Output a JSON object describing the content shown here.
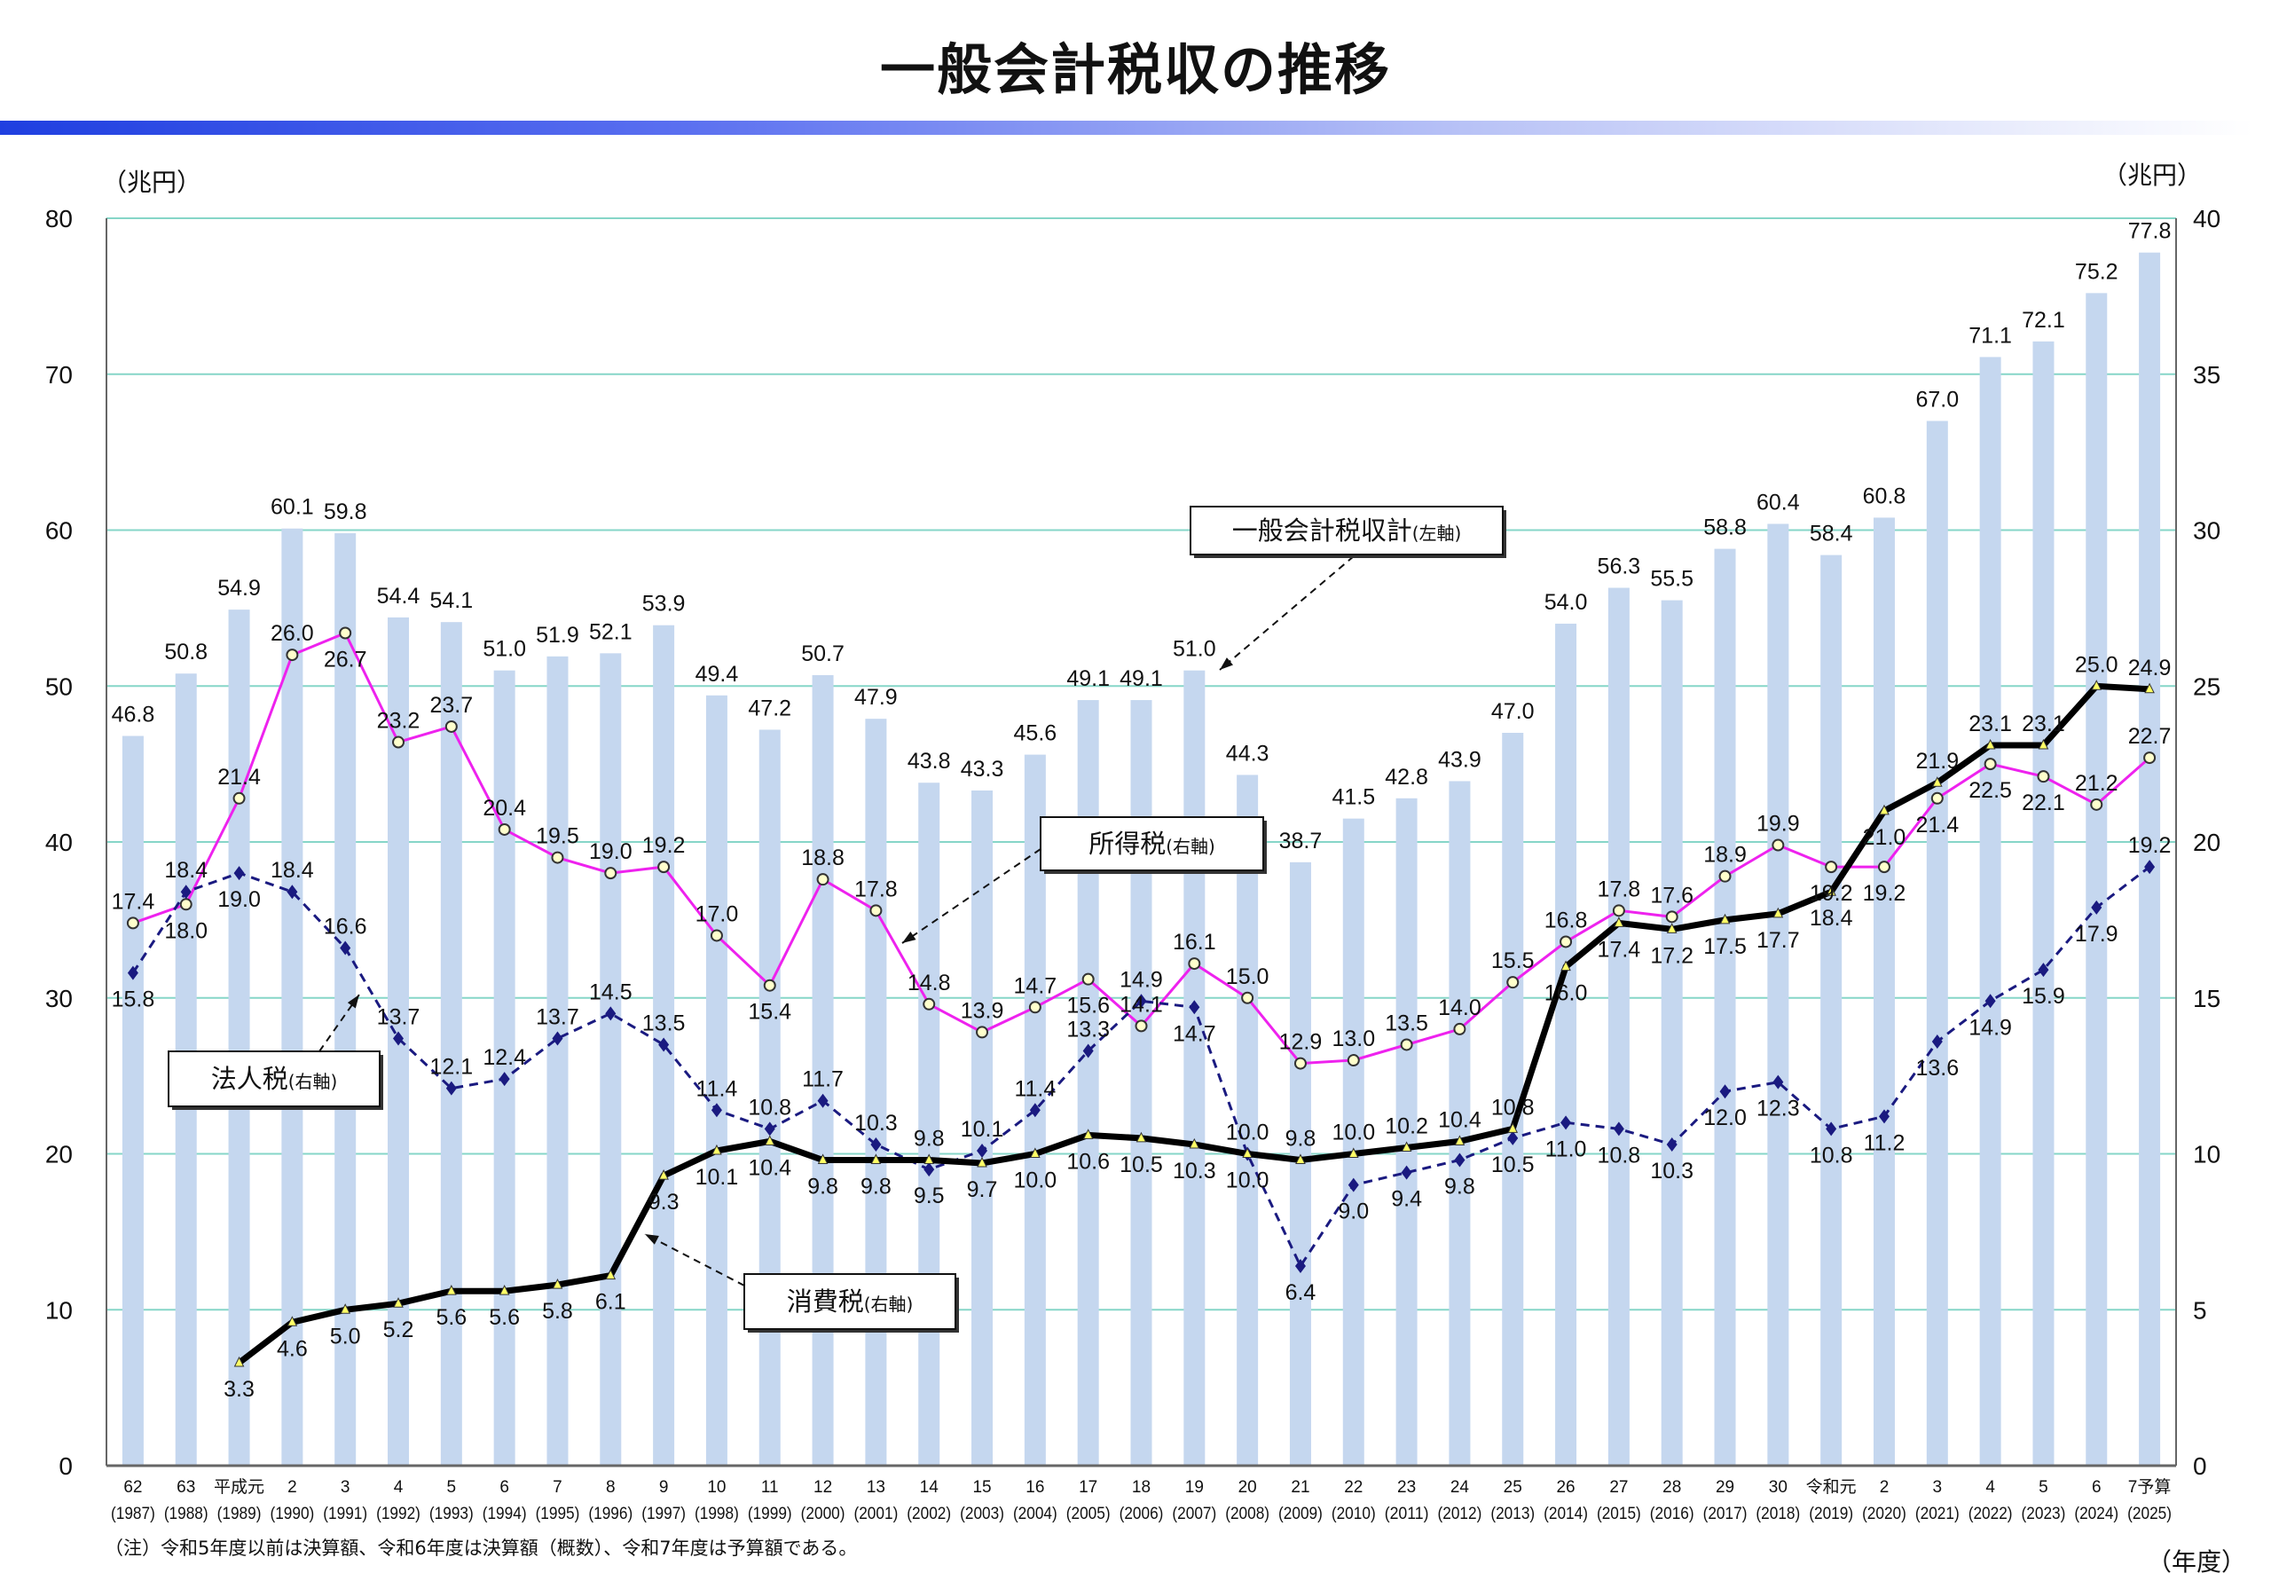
{
  "chart_data": {
    "type": "bar+line",
    "title": "一般会計税収の推移",
    "left_axis_unit": "（兆円）",
    "right_axis_unit": "（兆円）",
    "x_axis_unit": "（年度）",
    "note": "（注）令和5年度以前は決算額、令和6年度は決算額（概数）、令和7年度は予算額である。",
    "ylim_left": [
      0,
      80
    ],
    "ylim_right": [
      0,
      40
    ],
    "left_ticks": [
      "0",
      "10",
      "20",
      "30",
      "40",
      "50",
      "60",
      "70",
      "80"
    ],
    "right_ticks": [
      "0",
      "5",
      "10",
      "15",
      "20",
      "25",
      "30",
      "35",
      "40"
    ],
    "grid": true,
    "categories_era": [
      "62",
      "63",
      "平成元",
      "2",
      "3",
      "4",
      "5",
      "6",
      "7",
      "8",
      "9",
      "10",
      "11",
      "12",
      "13",
      "14",
      "15",
      "16",
      "17",
      "18",
      "19",
      "20",
      "21",
      "22",
      "23",
      "24",
      "25",
      "26",
      "27",
      "28",
      "29",
      "30",
      "令和元",
      "2",
      "3",
      "4",
      "5",
      "6",
      "7予算"
    ],
    "categories_year": [
      "(1987)",
      "(1988)",
      "(1989)",
      "(1990)",
      "(1991)",
      "(1992)",
      "(1993)",
      "(1994)",
      "(1995)",
      "(1996)",
      "(1997)",
      "(1998)",
      "(1999)",
      "(2000)",
      "(2001)",
      "(2002)",
      "(2003)",
      "(2004)",
      "(2005)",
      "(2006)",
      "(2007)",
      "(2008)",
      "(2009)",
      "(2010)",
      "(2011)",
      "(2012)",
      "(2013)",
      "(2014)",
      "(2015)",
      "(2016)",
      "(2017)",
      "(2018)",
      "(2019)",
      "(2020)",
      "(2021)",
      "(2022)",
      "(2023)",
      "(2024)",
      "(2025)"
    ],
    "series": [
      {
        "name": "一般会計税収計",
        "axis_note": "(左軸)",
        "axis": "left",
        "kind": "bar",
        "color": "#c5d7ef",
        "values": [
          46.8,
          50.8,
          54.9,
          60.1,
          59.8,
          54.4,
          54.1,
          51.0,
          51.9,
          52.1,
          53.9,
          49.4,
          47.2,
          50.7,
          47.9,
          43.8,
          43.3,
          45.6,
          49.1,
          49.1,
          51.0,
          44.3,
          38.7,
          41.5,
          42.8,
          43.9,
          47.0,
          54.0,
          56.3,
          55.5,
          58.8,
          60.4,
          58.4,
          60.8,
          67.0,
          71.1,
          72.1,
          75.2,
          77.8
        ]
      },
      {
        "name": "所得税",
        "axis_note": "(右軸)",
        "axis": "right",
        "kind": "line",
        "color": "#ee22ee",
        "values": [
          17.4,
          18.0,
          21.4,
          26.0,
          26.7,
          23.2,
          23.7,
          20.4,
          19.5,
          19.0,
          19.2,
          17.0,
          15.4,
          18.8,
          17.8,
          14.8,
          13.9,
          14.7,
          15.6,
          14.1,
          16.1,
          15.0,
          12.9,
          13.0,
          13.5,
          14.0,
          15.5,
          16.8,
          17.8,
          17.6,
          18.9,
          19.9,
          19.2,
          19.2,
          21.4,
          22.5,
          22.1,
          21.2,
          22.7
        ]
      },
      {
        "name": "法人税",
        "axis_note": "(右軸)",
        "axis": "right",
        "kind": "dashed-line",
        "color": "#1a1a80",
        "values": [
          15.8,
          18.4,
          19.0,
          18.4,
          16.6,
          13.7,
          12.1,
          12.4,
          13.7,
          14.5,
          13.5,
          11.4,
          10.8,
          11.7,
          10.3,
          9.5,
          10.1,
          11.4,
          13.3,
          14.9,
          14.7,
          10.0,
          6.4,
          9.0,
          9.4,
          9.8,
          10.5,
          11.0,
          10.8,
          10.3,
          12.0,
          12.3,
          10.8,
          11.2,
          13.6,
          14.9,
          15.9,
          17.9,
          19.2
        ]
      },
      {
        "name": "消費税",
        "axis_note": "(右軸)",
        "axis": "right",
        "kind": "line",
        "color": "#000000",
        "values": [
          null,
          null,
          3.3,
          4.6,
          5.0,
          5.2,
          5.6,
          5.6,
          5.8,
          6.1,
          9.3,
          10.1,
          10.4,
          9.8,
          9.8,
          9.8,
          9.7,
          10.0,
          10.6,
          10.5,
          10.3,
          10.0,
          9.8,
          10.0,
          10.2,
          10.4,
          10.8,
          16.0,
          17.4,
          17.2,
          17.5,
          17.7,
          18.4,
          21.0,
          21.9,
          23.1,
          23.1,
          25.0,
          24.9
        ]
      }
    ],
    "gridline_color": "#86d6c8",
    "header_bar_color": "#1f3fe0"
  }
}
